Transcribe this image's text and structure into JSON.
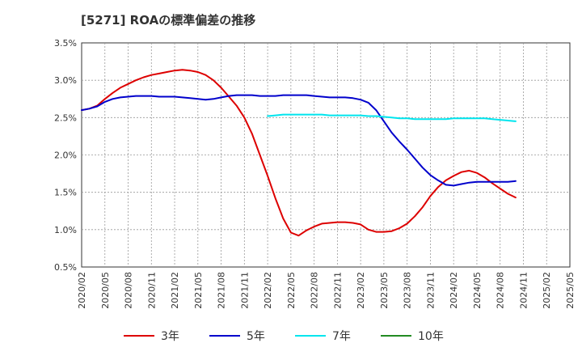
{
  "chart_data": {
    "type": "line",
    "title": "[5271]  ROAの標準偏差の推移",
    "xlabel": "",
    "ylabel": "",
    "ylim": [
      0.5,
      3.5
    ],
    "y_ticks": [
      0.5,
      1.0,
      1.5,
      2.0,
      2.5,
      3.0,
      3.5
    ],
    "y_tick_labels": [
      "0.5%",
      "1.0%",
      "1.5%",
      "2.0%",
      "2.5%",
      "3.0%",
      "3.5%"
    ],
    "x_tick_labels": [
      "2020/02",
      "2020/05",
      "2020/08",
      "2020/11",
      "2021/02",
      "2021/05",
      "2021/08",
      "2021/11",
      "2022/02",
      "2022/05",
      "2022/08",
      "2022/11",
      "2023/02",
      "2023/05",
      "2023/08",
      "2023/11",
      "2024/02",
      "2024/05",
      "2024/08",
      "2024/11",
      "2025/02",
      "2025/05"
    ],
    "grid": true,
    "legend_position": "bottom",
    "series": [
      {
        "name": "3年",
        "color": "#dd0000",
        "start_index": 0,
        "values": [
          2.6,
          2.62,
          2.66,
          2.75,
          2.83,
          2.9,
          2.95,
          3.0,
          3.04,
          3.07,
          3.09,
          3.11,
          3.13,
          3.14,
          3.13,
          3.11,
          3.07,
          3.0,
          2.9,
          2.78,
          2.66,
          2.5,
          2.28,
          2.0,
          1.72,
          1.42,
          1.15,
          0.96,
          0.92,
          0.99,
          1.04,
          1.08,
          1.09,
          1.1,
          1.1,
          1.09,
          1.07,
          1.0,
          0.97,
          0.97,
          0.98,
          1.02,
          1.08,
          1.18,
          1.3,
          1.45,
          1.57,
          1.66,
          1.72,
          1.77,
          1.79,
          1.76,
          1.7,
          1.62,
          1.55,
          1.48,
          1.43
        ]
      },
      {
        "name": "5年",
        "color": "#0000cc",
        "start_index": 0,
        "values": [
          2.6,
          2.62,
          2.65,
          2.71,
          2.75,
          2.77,
          2.78,
          2.79,
          2.79,
          2.79,
          2.78,
          2.78,
          2.78,
          2.77,
          2.76,
          2.75,
          2.74,
          2.75,
          2.77,
          2.79,
          2.8,
          2.8,
          2.8,
          2.79,
          2.79,
          2.79,
          2.8,
          2.8,
          2.8,
          2.8,
          2.79,
          2.78,
          2.77,
          2.77,
          2.77,
          2.76,
          2.74,
          2.7,
          2.6,
          2.45,
          2.3,
          2.18,
          2.07,
          1.95,
          1.83,
          1.73,
          1.66,
          1.6,
          1.59,
          1.61,
          1.63,
          1.64,
          1.64,
          1.64,
          1.64,
          1.64,
          1.65
        ]
      },
      {
        "name": "7年",
        "color": "#00e5ee",
        "start_index": 24,
        "values": [
          2.52,
          2.53,
          2.54,
          2.54,
          2.54,
          2.54,
          2.54,
          2.54,
          2.53,
          2.53,
          2.53,
          2.53,
          2.53,
          2.52,
          2.52,
          2.51,
          2.5,
          2.49,
          2.49,
          2.48,
          2.48,
          2.48,
          2.48,
          2.48,
          2.49,
          2.49,
          2.49,
          2.49,
          2.49,
          2.48,
          2.47,
          2.46,
          2.45
        ]
      },
      {
        "name": "10年",
        "color": "#228b22",
        "start_index": 0,
        "values": []
      }
    ]
  }
}
